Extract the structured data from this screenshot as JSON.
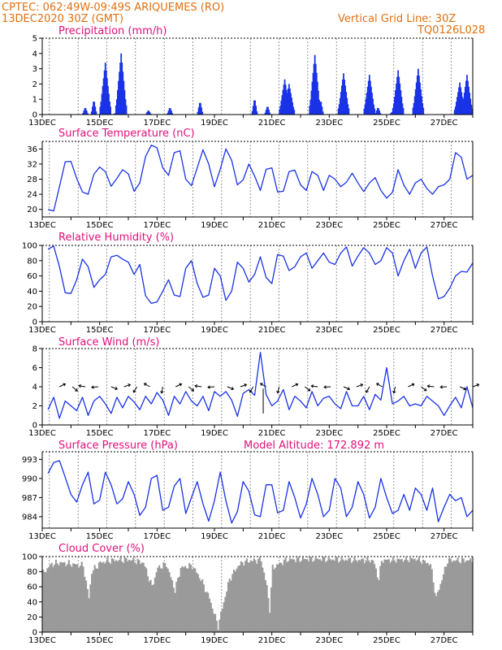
{
  "header": {
    "line1": "CPTEC:   062:49W-09:49S   ARIQUEMES (RO)",
    "line2": "13DEC2020 30Z (GMT)",
    "grid_note": "Vertical Grid Line: 30Z",
    "code": "TQ0126L028"
  },
  "colors": {
    "header": "#e07010",
    "title": "#e0107a",
    "series": "#1a33e6",
    "cloud": "#9a9a9a",
    "grid": "#555555"
  },
  "chart_data": [
    {
      "type": "bar",
      "title": "Precipitation (mm/h)",
      "ylim": [
        0,
        5
      ],
      "yticks": [
        "0",
        "1",
        "2",
        "3",
        "4",
        "5"
      ],
      "xticks": [
        "13DEC",
        "15DEC",
        "17DEC",
        "19DEC",
        "21DEC",
        "23DEC",
        "25DEC",
        "27DEC"
      ],
      "peaks": [
        {
          "day": 14.5,
          "value": 0.5
        },
        {
          "day": 14.8,
          "value": 1.0
        },
        {
          "day": 15.2,
          "value": 3.4
        },
        {
          "day": 15.55,
          "value": 0.1
        },
        {
          "day": 15.75,
          "value": 4.0
        },
        {
          "day": 16.7,
          "value": 0.3
        },
        {
          "day": 17.45,
          "value": 0.5
        },
        {
          "day": 18.5,
          "value": 0.9
        },
        {
          "day": 20.4,
          "value": 1.1
        },
        {
          "day": 20.85,
          "value": 0.6
        },
        {
          "day": 21.45,
          "value": 2.3
        },
        {
          "day": 21.6,
          "value": 2.0
        },
        {
          "day": 22.5,
          "value": 3.9
        },
        {
          "day": 22.7,
          "value": 1.0
        },
        {
          "day": 23.5,
          "value": 2.7
        },
        {
          "day": 24.4,
          "value": 2.6
        },
        {
          "day": 24.7,
          "value": 0.5
        },
        {
          "day": 25.2,
          "value": 0.2
        },
        {
          "day": 25.4,
          "value": 2.9
        },
        {
          "day": 26.1,
          "value": 3.0
        },
        {
          "day": 27.45,
          "value": 0.7
        },
        {
          "day": 27.55,
          "value": 2.1
        },
        {
          "day": 27.8,
          "value": 2.6
        }
      ]
    },
    {
      "type": "line",
      "title": "Surface Temperature (nC)",
      "ylim": [
        18,
        38
      ],
      "yticks": [
        "20",
        "24",
        "28",
        "32",
        "36"
      ],
      "xticks": [
        "13DEC",
        "15DEC",
        "17DEC",
        "19DEC",
        "21DEC",
        "23DEC",
        "25DEC",
        "27DEC"
      ],
      "x_days": [
        13.2,
        13.4,
        13.6,
        13.8,
        14.0,
        14.2,
        14.4,
        14.6,
        14.8,
        15.0,
        15.2,
        15.4,
        15.6,
        15.8,
        16.0,
        16.2,
        16.4,
        16.6,
        16.8,
        17.0,
        17.2,
        17.4,
        17.6,
        17.8,
        18.0,
        18.2,
        18.4,
        18.6,
        18.8,
        19.0,
        19.2,
        19.4,
        19.6,
        19.8,
        20.0,
        20.2,
        20.4,
        20.6,
        20.8,
        21.0,
        21.2,
        21.4,
        21.6,
        21.8,
        22.0,
        22.2,
        22.4,
        22.6,
        22.8,
        23.0,
        23.2,
        23.4,
        23.6,
        23.8,
        24.0,
        24.2,
        24.4,
        24.6,
        24.8,
        25.0,
        25.2,
        25.4,
        25.6,
        25.8,
        26.0,
        26.2,
        26.4,
        26.6,
        26.8,
        27.0,
        27.2,
        27.4,
        27.6,
        27.8,
        28.0
      ],
      "values": [
        20.0,
        19.6,
        26.0,
        32.6,
        32.7,
        28.2,
        24.6,
        24.0,
        29.3,
        31.2,
        30.0,
        26.1,
        28.2,
        30.5,
        29.4,
        24.8,
        27.0,
        34.0,
        37.0,
        36.3,
        31.0,
        29.0,
        35.0,
        35.5,
        28.0,
        26.3,
        31.0,
        35.8,
        32.0,
        26.0,
        30.6,
        36.0,
        33.0,
        26.5,
        27.8,
        32.0,
        28.8,
        25.0,
        30.6,
        31.0,
        24.6,
        24.8,
        30.0,
        30.4,
        26.5,
        25.0,
        30.0,
        29.0,
        25.0,
        29.0,
        28.0,
        26.0,
        27.2,
        29.6,
        27.0,
        24.7,
        27.0,
        28.4,
        25.0,
        23.0,
        24.5,
        30.5,
        26.4,
        24.0,
        27.0,
        28.0,
        25.5,
        24.0,
        26.0,
        26.5,
        28.0,
        35.0,
        33.8,
        28.0,
        29.0
      ]
    },
    {
      "type": "line",
      "title": "Relative Humidity (%)",
      "ylim": [
        0,
        100
      ],
      "yticks": [
        "0",
        "20",
        "40",
        "60",
        "80",
        "100"
      ],
      "xticks": [
        "13DEC",
        "15DEC",
        "17DEC",
        "19DEC",
        "21DEC",
        "23DEC",
        "25DEC",
        "27DEC"
      ],
      "x_days": [
        13.2,
        13.4,
        13.6,
        13.8,
        14.0,
        14.2,
        14.4,
        14.6,
        14.8,
        15.0,
        15.2,
        15.4,
        15.6,
        15.8,
        16.0,
        16.2,
        16.4,
        16.6,
        16.8,
        17.0,
        17.2,
        17.4,
        17.6,
        17.8,
        18.0,
        18.2,
        18.4,
        18.6,
        18.8,
        19.0,
        19.2,
        19.4,
        19.6,
        19.8,
        20.0,
        20.2,
        20.4,
        20.6,
        20.8,
        21.0,
        21.2,
        21.4,
        21.6,
        21.8,
        22.0,
        22.2,
        22.4,
        22.6,
        22.8,
        23.0,
        23.2,
        23.4,
        23.6,
        23.8,
        24.0,
        24.2,
        24.4,
        24.6,
        24.8,
        25.0,
        25.2,
        25.4,
        25.6,
        25.8,
        26.0,
        26.2,
        26.4,
        26.6,
        26.8,
        27.0,
        27.2,
        27.4,
        27.6,
        27.8,
        28.0
      ],
      "values": [
        95,
        99,
        72,
        38,
        37,
        55,
        82,
        72,
        45,
        55,
        62,
        85,
        87,
        82,
        78,
        62,
        75,
        34,
        24,
        26,
        40,
        55,
        35,
        33,
        70,
        80,
        50,
        32,
        35,
        70,
        60,
        28,
        40,
        78,
        70,
        52,
        62,
        85,
        58,
        50,
        88,
        86,
        67,
        72,
        85,
        90,
        70,
        80,
        90,
        78,
        75,
        90,
        98,
        73,
        86,
        97,
        90,
        75,
        80,
        97,
        90,
        60,
        80,
        95,
        70,
        90,
        98,
        60,
        30,
        33,
        44,
        60,
        66,
        65,
        77
      ]
    },
    {
      "type": "line",
      "title": "Surface Wind (m/s)",
      "ylim": [
        0,
        8
      ],
      "yticks": [
        "0",
        "2",
        "4",
        "6",
        "8"
      ],
      "xticks": [
        "13DEC",
        "15DEC",
        "17DEC",
        "19DEC",
        "21DEC",
        "23DEC",
        "25DEC",
        "27DEC"
      ],
      "x_days": [
        13.2,
        13.4,
        13.6,
        13.8,
        14.0,
        14.2,
        14.4,
        14.6,
        14.8,
        15.0,
        15.2,
        15.4,
        15.6,
        15.8,
        16.0,
        16.2,
        16.4,
        16.6,
        16.8,
        17.0,
        17.2,
        17.4,
        17.6,
        17.8,
        18.0,
        18.2,
        18.4,
        18.6,
        18.8,
        19.0,
        19.2,
        19.4,
        19.6,
        19.8,
        20.0,
        20.2,
        20.4,
        20.6,
        20.8,
        21.0,
        21.2,
        21.4,
        21.6,
        21.8,
        22.0,
        22.2,
        22.4,
        22.6,
        22.8,
        23.0,
        23.2,
        23.4,
        23.6,
        23.8,
        24.0,
        24.2,
        24.4,
        24.6,
        24.8,
        25.0,
        25.2,
        25.4,
        25.6,
        25.8,
        26.0,
        26.2,
        26.4,
        26.6,
        26.8,
        27.0,
        27.2,
        27.4,
        27.6,
        27.8,
        28.0
      ],
      "values": [
        1.6,
        2.9,
        0.7,
        2.5,
        2.0,
        1.5,
        2.9,
        1.0,
        2.5,
        3.0,
        2.2,
        1.2,
        2.9,
        1.8,
        3.0,
        2.4,
        1.6,
        3.0,
        2.2,
        3.4,
        2.6,
        1.0,
        3.0,
        2.2,
        3.5,
        2.5,
        2.0,
        3.0,
        1.5,
        3.5,
        3.0,
        3.5,
        2.6,
        0.9,
        3.3,
        3.7,
        3.1,
        7.6,
        3.2,
        2.0,
        2.5,
        3.7,
        1.6,
        3.0,
        2.5,
        1.8,
        3.5,
        2.0,
        2.8,
        3.0,
        2.2,
        1.7,
        3.5,
        2.0,
        2.0,
        3.0,
        1.6,
        3.2,
        2.6,
        6.0,
        2.2,
        2.5,
        3.0,
        2.0,
        2.2,
        2.0,
        3.0,
        2.5,
        2.0,
        1.0,
        2.0,
        2.9,
        1.8,
        4.0,
        1.8
      ]
    },
    {
      "type": "line",
      "title": "Surface Pressure (hPa)",
      "annotation": "Model Altitude: 172.892  m",
      "ylim": [
        982.2,
        994.2
      ],
      "yticks": [
        "984",
        "987",
        "990",
        "993"
      ],
      "xticks": [
        "13DEC",
        "15DEC",
        "17DEC",
        "19DEC",
        "21DEC",
        "23DEC",
        "25DEC",
        "27DEC"
      ],
      "x_days": [
        13.2,
        13.4,
        13.6,
        13.8,
        14.0,
        14.2,
        14.4,
        14.6,
        14.8,
        15.0,
        15.2,
        15.4,
        15.6,
        15.8,
        16.0,
        16.2,
        16.4,
        16.6,
        16.8,
        17.0,
        17.2,
        17.4,
        17.6,
        17.8,
        18.0,
        18.2,
        18.4,
        18.6,
        18.8,
        19.0,
        19.2,
        19.4,
        19.6,
        19.8,
        20.0,
        20.2,
        20.4,
        20.6,
        20.8,
        21.0,
        21.2,
        21.4,
        21.6,
        21.8,
        22.0,
        22.2,
        22.4,
        22.6,
        22.8,
        23.0,
        23.2,
        23.4,
        23.6,
        23.8,
        24.0,
        24.2,
        24.4,
        24.6,
        24.8,
        25.0,
        25.2,
        25.4,
        25.6,
        25.8,
        26.0,
        26.2,
        26.4,
        26.6,
        26.8,
        27.0,
        27.2,
        27.4,
        27.6,
        27.8,
        28.0
      ],
      "values": [
        990.8,
        992.5,
        992.8,
        990.2,
        987.5,
        986.3,
        989.0,
        991.0,
        986.0,
        986.6,
        991.0,
        989.0,
        986.0,
        986.8,
        989.5,
        987.5,
        984.2,
        985.5,
        990.0,
        990.5,
        985.0,
        985.5,
        988.8,
        990.0,
        984.5,
        987.0,
        989.5,
        986.0,
        983.3,
        986.5,
        991.0,
        986.5,
        983.0,
        984.8,
        989.5,
        988.0,
        984.3,
        984.0,
        989.0,
        989.0,
        984.6,
        985.0,
        989.5,
        987.0,
        983.8,
        986.0,
        990.0,
        987.5,
        984.0,
        985.0,
        990.0,
        988.5,
        984.0,
        985.5,
        989.5,
        987.5,
        983.8,
        985.5,
        990.0,
        987.0,
        984.5,
        985.0,
        987.5,
        985.0,
        988.5,
        987.5,
        985.0,
        988.5,
        983.2,
        985.5,
        987.5,
        986.5,
        987.0,
        984.0,
        985.0
      ]
    },
    {
      "type": "bar",
      "title": "Cloud Cover (%)",
      "ylim": [
        0,
        100
      ],
      "yticks": [
        "0",
        "20",
        "40",
        "60",
        "80",
        "100"
      ],
      "xticks": [
        "13DEC",
        "15DEC",
        "17DEC",
        "19DEC",
        "21DEC",
        "23DEC",
        "25DEC",
        "27DEC"
      ],
      "profile": [
        {
          "day": 13.0,
          "value": 78
        },
        {
          "day": 13.3,
          "value": 90
        },
        {
          "day": 13.6,
          "value": 92
        },
        {
          "day": 14.0,
          "value": 90
        },
        {
          "day": 14.4,
          "value": 88
        },
        {
          "day": 14.6,
          "value": 45
        },
        {
          "day": 14.7,
          "value": 80
        },
        {
          "day": 15.0,
          "value": 92
        },
        {
          "day": 15.4,
          "value": 95
        },
        {
          "day": 16.0,
          "value": 96
        },
        {
          "day": 16.5,
          "value": 92
        },
        {
          "day": 16.8,
          "value": 60
        },
        {
          "day": 17.0,
          "value": 85
        },
        {
          "day": 17.3,
          "value": 90
        },
        {
          "day": 17.6,
          "value": 55
        },
        {
          "day": 17.8,
          "value": 85
        },
        {
          "day": 18.2,
          "value": 88
        },
        {
          "day": 18.5,
          "value": 70
        },
        {
          "day": 18.8,
          "value": 45
        },
        {
          "day": 19.0,
          "value": 20
        },
        {
          "day": 19.1,
          "value": 8
        },
        {
          "day": 19.3,
          "value": 40
        },
        {
          "day": 19.5,
          "value": 70
        },
        {
          "day": 19.8,
          "value": 88
        },
        {
          "day": 20.0,
          "value": 93
        },
        {
          "day": 20.6,
          "value": 96
        },
        {
          "day": 20.8,
          "value": 60
        },
        {
          "day": 20.9,
          "value": 30
        },
        {
          "day": 21.0,
          "value": 85
        },
        {
          "day": 21.5,
          "value": 96
        },
        {
          "day": 22.5,
          "value": 97
        },
        {
          "day": 23.5,
          "value": 96
        },
        {
          "day": 24.5,
          "value": 95
        },
        {
          "day": 24.7,
          "value": 70
        },
        {
          "day": 24.8,
          "value": 95
        },
        {
          "day": 25.5,
          "value": 96
        },
        {
          "day": 26.0,
          "value": 97
        },
        {
          "day": 26.5,
          "value": 90
        },
        {
          "day": 26.7,
          "value": 45
        },
        {
          "day": 26.9,
          "value": 70
        },
        {
          "day": 27.1,
          "value": 95
        },
        {
          "day": 28.0,
          "value": 95
        }
      ]
    }
  ]
}
